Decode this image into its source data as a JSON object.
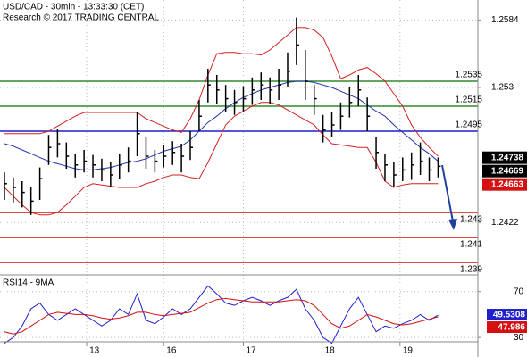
{
  "chart_data": [
    {
      "type": "ohlc",
      "title": "USD/CAD - 30min - 13:33:30 (CET)",
      "subtitle": "Research © 2017 TRADING CENTRAL",
      "ylim": [
        1.238,
        1.26
      ],
      "yticks": [
        1.2584,
        1.253,
        1.2422
      ],
      "xlim": [
        -0.5,
        53.5
      ],
      "xticks": [
        {
          "value": 9.3,
          "label": "13"
        },
        {
          "value": 18,
          "label": "16"
        },
        {
          "value": 27,
          "label": "17"
        },
        {
          "value": 35.9,
          "label": "18"
        },
        {
          "value": 44.7,
          "label": "19"
        }
      ],
      "grid": true,
      "bar_color": "#000000",
      "high": [
        1.2462,
        1.2458,
        1.2455,
        1.245,
        1.2466,
        1.2492,
        1.2497,
        1.2486,
        1.2477,
        1.248,
        1.2476,
        1.2473,
        1.247,
        1.2477,
        1.2482,
        1.251,
        1.249,
        1.248,
        1.2484,
        1.2487,
        1.2485,
        1.2495,
        1.252,
        1.2545,
        1.254,
        1.2532,
        1.2528,
        1.2531,
        1.2538,
        1.2542,
        1.2538,
        1.2545,
        1.2558,
        1.2586,
        1.256,
        1.2532,
        1.2508,
        1.251,
        1.2518,
        1.253,
        1.254,
        1.2522,
        1.249,
        1.2477,
        1.247,
        1.2474,
        1.2478,
        1.2486,
        1.2474,
        1.2474
      ],
      "low": [
        1.244,
        1.2438,
        1.2434,
        1.2428,
        1.244,
        1.2468,
        1.2474,
        1.2465,
        1.2458,
        1.2462,
        1.2458,
        1.2455,
        1.245,
        1.2457,
        1.2462,
        1.2475,
        1.2465,
        1.2462,
        1.2466,
        1.2468,
        1.2462,
        1.2472,
        1.2495,
        1.2518,
        1.2517,
        1.251,
        1.2508,
        1.2511,
        1.2516,
        1.252,
        1.2517,
        1.252,
        1.253,
        1.2548,
        1.252,
        1.2508,
        1.2486,
        1.249,
        1.2496,
        1.2506,
        1.2515,
        1.2495,
        1.2465,
        1.2455,
        1.245,
        1.2455,
        1.2456,
        1.246,
        1.2455,
        1.2458
      ],
      "close": [
        1.2453,
        1.245,
        1.2446,
        1.2439,
        1.2457,
        1.2482,
        1.2485,
        1.2475,
        1.2468,
        1.2471,
        1.2468,
        1.2464,
        1.246,
        1.2468,
        1.2471,
        1.2493,
        1.2475,
        1.2471,
        1.2475,
        1.2478,
        1.2475,
        1.2482,
        1.2507,
        1.2532,
        1.2528,
        1.2521,
        1.2518,
        1.2521,
        1.2528,
        1.2532,
        1.2528,
        1.2532,
        1.2543,
        1.2564,
        1.2535,
        1.2521,
        1.2496,
        1.25,
        1.2507,
        1.2518,
        1.2528,
        1.2507,
        1.2478,
        1.2468,
        1.246,
        1.2464,
        1.2468,
        1.2471,
        1.2464,
        1.24669
      ],
      "lines": [
        {
          "color": "#d42020",
          "values": [
            1.2493,
            1.2493,
            1.2493,
            1.2493,
            1.2493,
            1.2495,
            1.2499,
            1.2503,
            1.2507,
            1.251,
            1.251,
            1.251,
            1.251,
            1.251,
            1.251,
            1.251,
            1.2505,
            1.2502,
            1.2499,
            1.2496,
            1.2494,
            1.2505,
            1.252,
            1.254,
            1.2557,
            1.2558,
            1.2558,
            1.2557,
            1.2557,
            1.2556,
            1.256,
            1.2566,
            1.2572,
            1.2578,
            1.2578,
            1.2576,
            1.257,
            1.2555,
            1.2537,
            1.254,
            1.2544,
            1.2546,
            1.2541,
            1.2535,
            1.2525,
            1.2515,
            1.25,
            1.249,
            1.2482,
            1.2475
          ]
        },
        {
          "color": "#d42020",
          "values": [
            1.245,
            1.2443,
            1.2436,
            1.243,
            1.2428,
            1.2428,
            1.243,
            1.2436,
            1.2443,
            1.245,
            1.2453,
            1.2452,
            1.2451,
            1.245,
            1.245,
            1.245,
            1.2453,
            1.2455,
            1.2458,
            1.246,
            1.246,
            1.2458,
            1.2457,
            1.247,
            1.2485,
            1.25,
            1.2507,
            1.2511,
            1.2515,
            1.2518,
            1.2518,
            1.2516,
            1.2512,
            1.2508,
            1.2504,
            1.25,
            1.2492,
            1.2485,
            1.2484,
            1.2483,
            1.2482,
            1.2482,
            1.247,
            1.2455,
            1.245,
            1.2452,
            1.2453,
            1.2453,
            1.2453,
            1.2453
          ]
        },
        {
          "color": "#2233aa",
          "values": [
            1.2485,
            1.2483,
            1.248,
            1.2477,
            1.2474,
            1.2471,
            1.2469,
            1.2467,
            1.2465,
            1.2464,
            1.2464,
            1.2465,
            1.2466,
            1.2468,
            1.247,
            1.2471,
            1.2473,
            1.2476,
            1.2479,
            1.2481,
            1.2483,
            1.2488,
            1.2495,
            1.2502,
            1.2507,
            1.2513,
            1.2518,
            1.2522,
            1.2525,
            1.2528,
            1.253,
            1.2532,
            1.2534,
            1.2535,
            1.2535,
            1.2534,
            1.2532,
            1.253,
            1.2527,
            1.2524,
            1.2521,
            1.2516,
            1.2511,
            1.2507,
            1.25,
            1.2494,
            1.2488,
            1.2482,
            1.2477,
            1.2471
          ]
        }
      ],
      "levels": [
        {
          "value": 1.2535,
          "color": "#2e8b2e"
        },
        {
          "value": 1.2515,
          "color": "#2e8b2e"
        },
        {
          "value": 1.2495,
          "color": "#1f1fcc"
        },
        {
          "value": 1.243,
          "color": "#d41010"
        },
        {
          "value": 1.241,
          "color": "#d41010"
        },
        {
          "value": 1.239,
          "color": "#d41010"
        }
      ],
      "price_tags": [
        {
          "value": 1.24738,
          "color": "#000000"
        },
        {
          "value": 1.24669,
          "color": "#000000"
        },
        {
          "value": 1.24663,
          "color": "#d41010"
        }
      ]
    },
    {
      "type": "line",
      "title": "RSI14 - 9MA",
      "ylim": [
        13,
        83
      ],
      "yticks": [
        70,
        30
      ],
      "series": [
        {
          "color": "#1f1fcc",
          "values": [
            25,
            30,
            40,
            55,
            60,
            50,
            45,
            50,
            55,
            50,
            45,
            40,
            45,
            55,
            50,
            68,
            45,
            42,
            48,
            55,
            50,
            55,
            65,
            75,
            68,
            60,
            58,
            62,
            65,
            62,
            58,
            62,
            65,
            72,
            55,
            45,
            30,
            25,
            40,
            55,
            65,
            50,
            35,
            40,
            38,
            42,
            45,
            50,
            45,
            49.5308
          ]
        },
        {
          "color": "#d41010",
          "values": [
            35,
            33,
            35,
            40,
            45,
            50,
            52,
            51,
            50,
            50,
            49,
            47,
            46,
            47,
            49,
            52,
            52,
            50,
            49,
            50,
            51,
            52,
            56,
            60,
            63,
            64,
            63,
            62,
            61,
            61,
            61,
            61,
            62,
            63,
            62,
            58,
            50,
            42,
            38,
            40,
            45,
            50,
            48,
            45,
            42,
            41,
            42,
            44,
            46,
            47.986
          ]
        }
      ]
    }
  ]
}
